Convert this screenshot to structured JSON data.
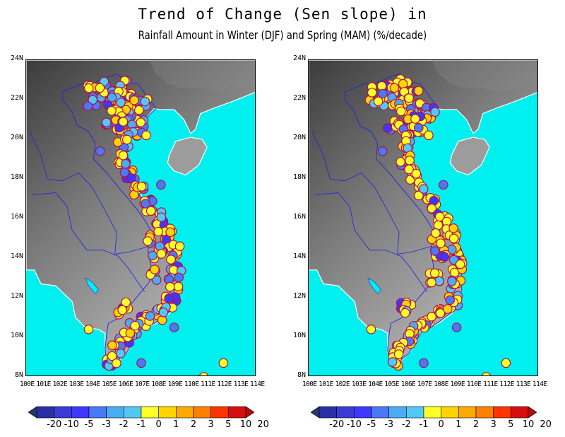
{
  "title": {
    "line1": "Trend of Change (Sen slope) in",
    "line2": "Rainfall Amount in Winter (DJF) and Spring (MAM) (%/decade)"
  },
  "map": {
    "lat_labels": [
      "24N",
      "22N",
      "20N",
      "18N",
      "16N",
      "14N",
      "12N",
      "10N",
      "8N"
    ],
    "lon_labels": [
      "100E",
      "101E",
      "102E",
      "103E",
      "104E",
      "105E",
      "106E",
      "107E",
      "108E",
      "109E",
      "110E",
      "111E",
      "112E",
      "113E",
      "114E"
    ],
    "lat_range": [
      8,
      24
    ],
    "lon_range": [
      100,
      114
    ],
    "colors": {
      "sea": "#00f0f0",
      "station_outline": "#b0104a",
      "border": "#2222dd",
      "coast": "#ffffff"
    }
  },
  "panels": [
    {
      "name": "Winter (DJF)",
      "dominant_class": "positive"
    },
    {
      "name": "Spring (MAM)",
      "dominant_class": "positive"
    }
  ],
  "colorbar": {
    "labels": [
      "-20",
      "-10",
      "-5",
      "-3",
      "-2",
      "-1",
      "0",
      "1",
      "2",
      "3",
      "5",
      "10",
      "20"
    ],
    "colors": [
      "#233a6e",
      "#2b2fa6",
      "#3b3bd6",
      "#3f37ff",
      "#4a79f5",
      "#4cabf5",
      "#52c9f5",
      "#ffff28",
      "#ffd400",
      "#ffaa00",
      "#ff7f00",
      "#ff3300",
      "#d80e0e",
      "#b40a0a"
    ]
  }
}
